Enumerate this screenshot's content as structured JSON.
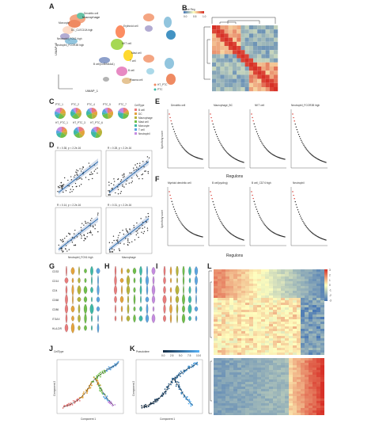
{
  "figure": {
    "panel_letters": [
      "A",
      "B",
      "C",
      "D",
      "E",
      "F",
      "G",
      "H",
      "I",
      "J",
      "K",
      "L"
    ]
  },
  "panelA": {
    "umap_axes": [
      "UMAP_2",
      "UMAP_1"
    ],
    "cluster_labels": [
      "Macrophage",
      "Monocyte",
      "DC_CLEC10A high",
      "Neutrophil_FCN1 high",
      "Neutrophil_FCGR3B high",
      "Dendritic cell",
      "Erythroid cell",
      "NKT cell",
      "Mast cell",
      "T cell",
      "B cell(Ccl5/Ms4a1)",
      "B cell",
      "Plasma cell"
    ],
    "legend_inset": [
      "HT_PTC",
      "PTC"
    ]
  },
  "panelB": {
    "title": "Gene Reg",
    "colorbar_ticks": [
      "0.0",
      "0.5",
      "1.0"
    ]
  },
  "panelC": {
    "pies_top": [
      "PTC_1",
      "PTC_2",
      "PTC_4",
      "PTC_5",
      "PTC_7"
    ],
    "pies_bottom": [
      "HT_PTC_1",
      "HT_PTC_3",
      "HT_PTC_6"
    ],
    "legend_title": "CellType",
    "legend_items": [
      {
        "label": "B cell",
        "color": "#e97b7b"
      },
      {
        "label": "DC",
        "color": "#e3a33b"
      },
      {
        "label": "Macrophage",
        "color": "#b7b33b"
      },
      {
        "label": "Mast cell",
        "color": "#6fbf4a"
      },
      {
        "label": "Monocyte",
        "color": "#3fb8a5"
      },
      {
        "label": "T cell",
        "color": "#5aa4e0"
      },
      {
        "label": "Neutrophil",
        "color": "#c58be0"
      }
    ]
  },
  "panelD": {
    "stats": [
      "R = 0.38, p < 2.2e-16",
      "R = 0.28, p < 2.2e-16",
      "R = 0.14, p < 2.2e-16",
      "R = 0.31, p < 2.2e-16"
    ],
    "xlabels": [
      "Neutrophil_FCN1 high",
      "Macrophage"
    ]
  },
  "panelE": {
    "titles": [
      "Dendritic cell",
      "Macrophage_BC",
      "NKT cell",
      "Neutrophil_FCGR3B high"
    ],
    "ylabel": "Specificity score",
    "xlabel": "Regulons"
  },
  "panelF": {
    "titles": [
      "Myeloid dendritic cell",
      "B cell(cycling)",
      "B cell_CD74 high",
      "Neutrophil"
    ],
    "ylabel": "Specificity score",
    "xlabel": "Regulons"
  },
  "panelG": {
    "genes": [
      "CD33",
      "CD14",
      "CD4",
      "CD68",
      "CD86",
      "ITGAX",
      "HLA-DR"
    ]
  },
  "panelJ": {
    "legend_title": "CellType",
    "xlabel": "Component 1",
    "ylabel": "Component 2"
  },
  "panelK": {
    "legend_title": "Pseudotime",
    "ticks": [
      "0.0",
      "2.5",
      "5.0",
      "7.5",
      "10.0"
    ],
    "xlabel": "Component 1",
    "ylabel": "Component 2"
  },
  "panelL": {
    "colorbar_ticks": [
      "3",
      "2",
      "1",
      "0",
      "-1",
      "-2",
      "-3"
    ]
  },
  "colors": {
    "heat_red": "#d73027",
    "heat_blue": "#4575b4",
    "heat_yellow": "#fee090",
    "traj_dark": "#132b43",
    "traj_light": "#56b1f7"
  }
}
